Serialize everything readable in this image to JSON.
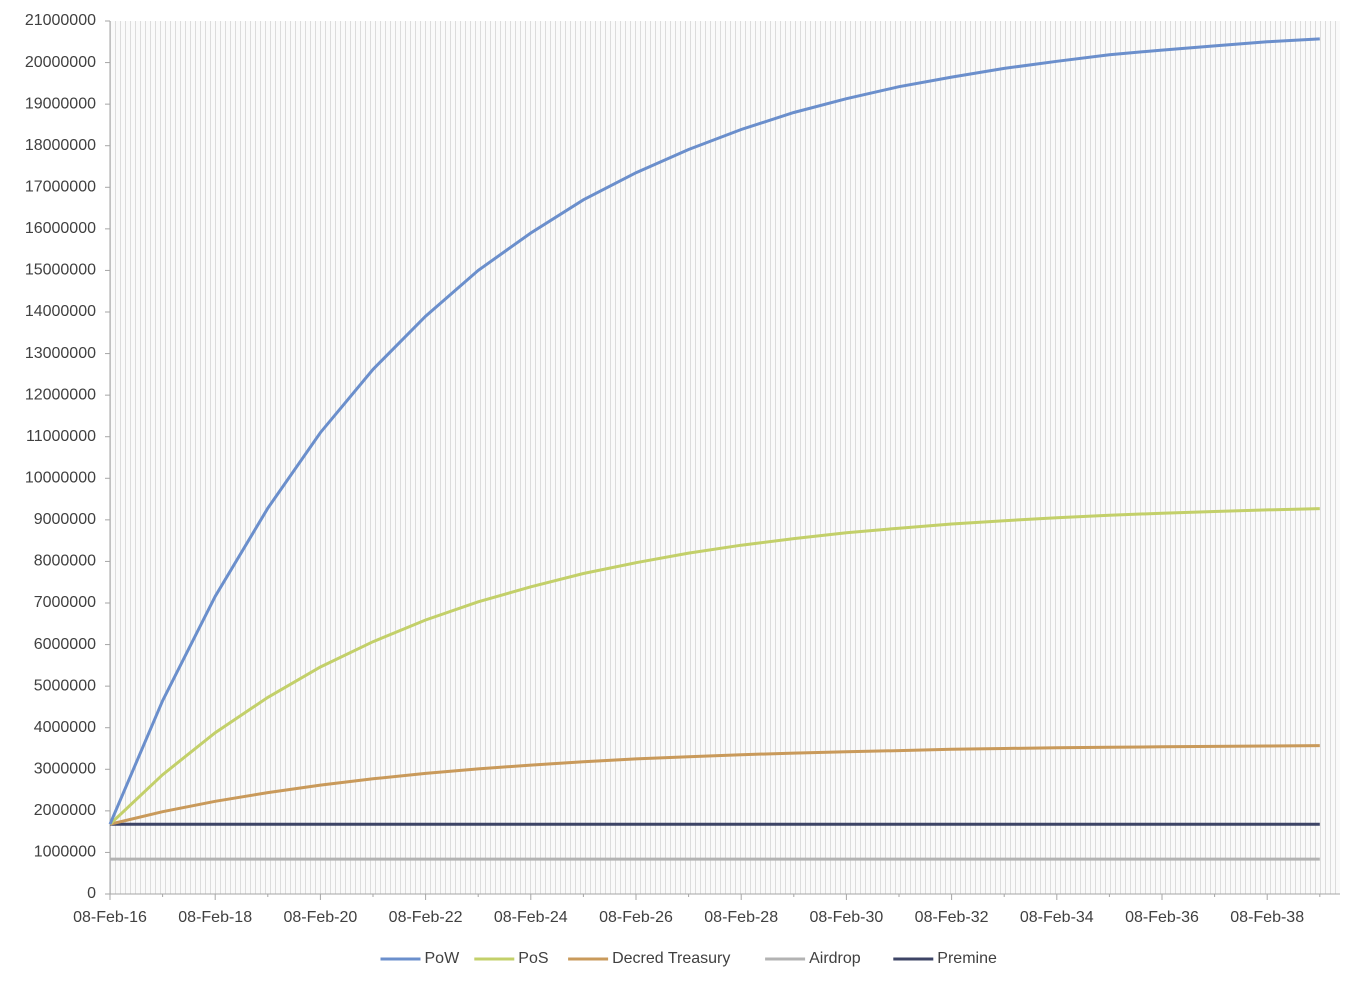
{
  "chart_data": {
    "type": "line",
    "categories": [
      "08-Feb-16",
      null,
      "08-Feb-18",
      null,
      "08-Feb-20",
      null,
      "08-Feb-22",
      null,
      "08-Feb-24",
      null,
      "08-Feb-26",
      null,
      "08-Feb-28",
      null,
      "08-Feb-30",
      null,
      "08-Feb-32",
      null,
      "08-Feb-34",
      null,
      "08-Feb-36",
      null,
      "08-Feb-38",
      null
    ],
    "series": [
      {
        "name": "PoW",
        "color": "#6b8fcc",
        "values": [
          1680000,
          4650000,
          7160000,
          9280000,
          11100000,
          12620000,
          13900000,
          15000000,
          15900000,
          16700000,
          17350000,
          17910000,
          18390000,
          18800000,
          19130000,
          19420000,
          19650000,
          19860000,
          20030000,
          20190000,
          20300000,
          20400000,
          20500000,
          20570000
        ]
      },
      {
        "name": "PoS",
        "color": "#c3d06a",
        "values": [
          1680000,
          2870000,
          3880000,
          4730000,
          5460000,
          6070000,
          6590000,
          7030000,
          7390000,
          7710000,
          7970000,
          8200000,
          8390000,
          8550000,
          8690000,
          8800000,
          8900000,
          8980000,
          9050000,
          9110000,
          9160000,
          9200000,
          9240000,
          9270000
        ]
      },
      {
        "name": "Decred Treasury",
        "color": "#c99a5b",
        "values": [
          1680000,
          1980000,
          2230000,
          2440000,
          2620000,
          2770000,
          2900000,
          3010000,
          3100000,
          3180000,
          3250000,
          3300000,
          3350000,
          3390000,
          3420000,
          3450000,
          3480000,
          3500000,
          3520000,
          3530000,
          3540000,
          3550000,
          3560000,
          3570000
        ]
      },
      {
        "name": "Airdrop",
        "color": "#b3b3b3",
        "values": [
          840000,
          840000,
          840000,
          840000,
          840000,
          840000,
          840000,
          840000,
          840000,
          840000,
          840000,
          840000,
          840000,
          840000,
          840000,
          840000,
          840000,
          840000,
          840000,
          840000,
          840000,
          840000,
          840000,
          840000
        ]
      },
      {
        "name": "Premine",
        "color": "#3d4466",
        "values": [
          1680000,
          1680000,
          1680000,
          1680000,
          1680000,
          1680000,
          1680000,
          1680000,
          1680000,
          1680000,
          1680000,
          1680000,
          1680000,
          1680000,
          1680000,
          1680000,
          1680000,
          1680000,
          1680000,
          1680000,
          1680000,
          1680000,
          1680000,
          1680000
        ]
      }
    ],
    "ylim": [
      0,
      21000000
    ],
    "yticks": [
      0,
      1000000,
      2000000,
      3000000,
      4000000,
      5000000,
      6000000,
      7000000,
      8000000,
      9000000,
      10000000,
      11000000,
      12000000,
      13000000,
      14000000,
      15000000,
      16000000,
      17000000,
      18000000,
      19000000,
      20000000,
      21000000
    ],
    "legend": "bottom"
  }
}
